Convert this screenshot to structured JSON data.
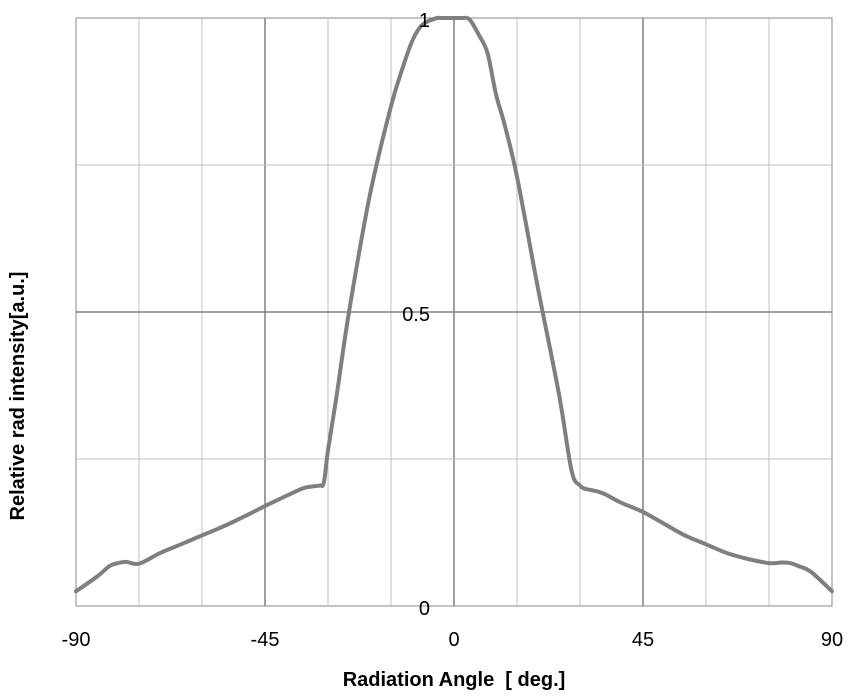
{
  "chart_data": {
    "type": "line",
    "xlabel": "Radiation Angle  [ deg.]",
    "ylabel": "Relative rad intensity[a.u.]",
    "xlim": [
      -90,
      90
    ],
    "ylim": [
      0,
      1
    ],
    "x_ticks": [
      "-90",
      "-45",
      "0",
      "45",
      "90"
    ],
    "y_ticks": [
      "0",
      "0.5",
      "1"
    ],
    "grid": true,
    "line_color": "#7f7f7f",
    "series": [
      {
        "x": [
          -90,
          -85,
          -82,
          -80,
          -78,
          -75,
          -70,
          -65,
          -60,
          -55,
          -50,
          -45,
          -40,
          -36,
          -34,
          -32,
          -31,
          -30,
          -28,
          -25,
          -20,
          -15,
          -12,
          -10,
          -8,
          -6,
          -4,
          -3,
          -2,
          0,
          2,
          3,
          4,
          6,
          8,
          10,
          12,
          15,
          20,
          25,
          28,
          30,
          31,
          32,
          34,
          36,
          40,
          45,
          50,
          55,
          60,
          65,
          70,
          75,
          78,
          80,
          82,
          85,
          90
        ],
        "values": [
          0.025,
          0.05,
          0.068,
          0.073,
          0.075,
          0.072,
          0.09,
          0.105,
          0.12,
          0.135,
          0.152,
          0.17,
          0.187,
          0.2,
          0.203,
          0.205,
          0.21,
          0.265,
          0.355,
          0.5,
          0.7,
          0.85,
          0.92,
          0.96,
          0.985,
          0.995,
          1.0,
          1.0,
          1.0,
          1.0,
          1.0,
          1.0,
          0.995,
          0.97,
          0.94,
          0.87,
          0.82,
          0.73,
          0.54,
          0.36,
          0.23,
          0.205,
          0.2,
          0.198,
          0.195,
          0.19,
          0.175,
          0.16,
          0.14,
          0.12,
          0.105,
          0.09,
          0.08,
          0.073,
          0.074,
          0.073,
          0.068,
          0.058,
          0.025
        ]
      }
    ]
  }
}
